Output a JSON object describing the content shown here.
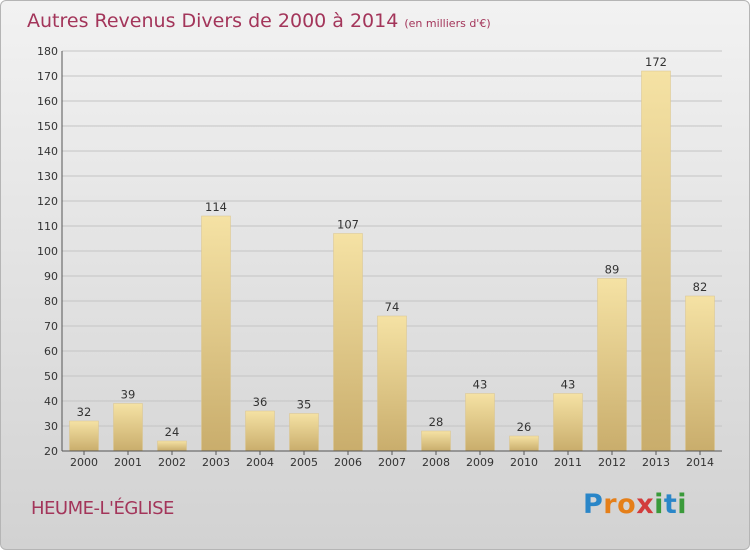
{
  "title": "Autres Revenus Divers de 2000 à 2014",
  "unit_note": "(en milliers d'€)",
  "commune": "HEUME-L'ÉGLISE",
  "logo": {
    "text": "Proxiti",
    "letters": [
      {
        "char": "P",
        "color": "#2a86c8"
      },
      {
        "char": "r",
        "color": "#e57f19"
      },
      {
        "char": "o",
        "color": "#e57f19"
      },
      {
        "char": "x",
        "color": "#d23c3c"
      },
      {
        "char": "i",
        "color": "#3a9a3a"
      },
      {
        "char": "t",
        "color": "#2a86c8"
      },
      {
        "char": "i",
        "color": "#3a9a3a"
      }
    ]
  },
  "colors": {
    "title": "#a3355a",
    "bar_light": "#f5e2a4",
    "bar_dark": "#c9ad6c",
    "grid": "#c4c4c4"
  },
  "chart_data": {
    "type": "bar",
    "categories": [
      "2000",
      "2001",
      "2002",
      "2003",
      "2004",
      "2005",
      "2006",
      "2007",
      "2008",
      "2009",
      "2010",
      "2011",
      "2012",
      "2013",
      "2014"
    ],
    "values": [
      32,
      39,
      24,
      114,
      36,
      35,
      107,
      74,
      28,
      43,
      26,
      43,
      89,
      172,
      82
    ],
    "ylim": [
      20,
      180
    ],
    "yticks": [
      20,
      30,
      40,
      50,
      60,
      70,
      80,
      90,
      100,
      110,
      120,
      130,
      140,
      150,
      160,
      170,
      180
    ],
    "grid": true,
    "data_labels": true
  }
}
